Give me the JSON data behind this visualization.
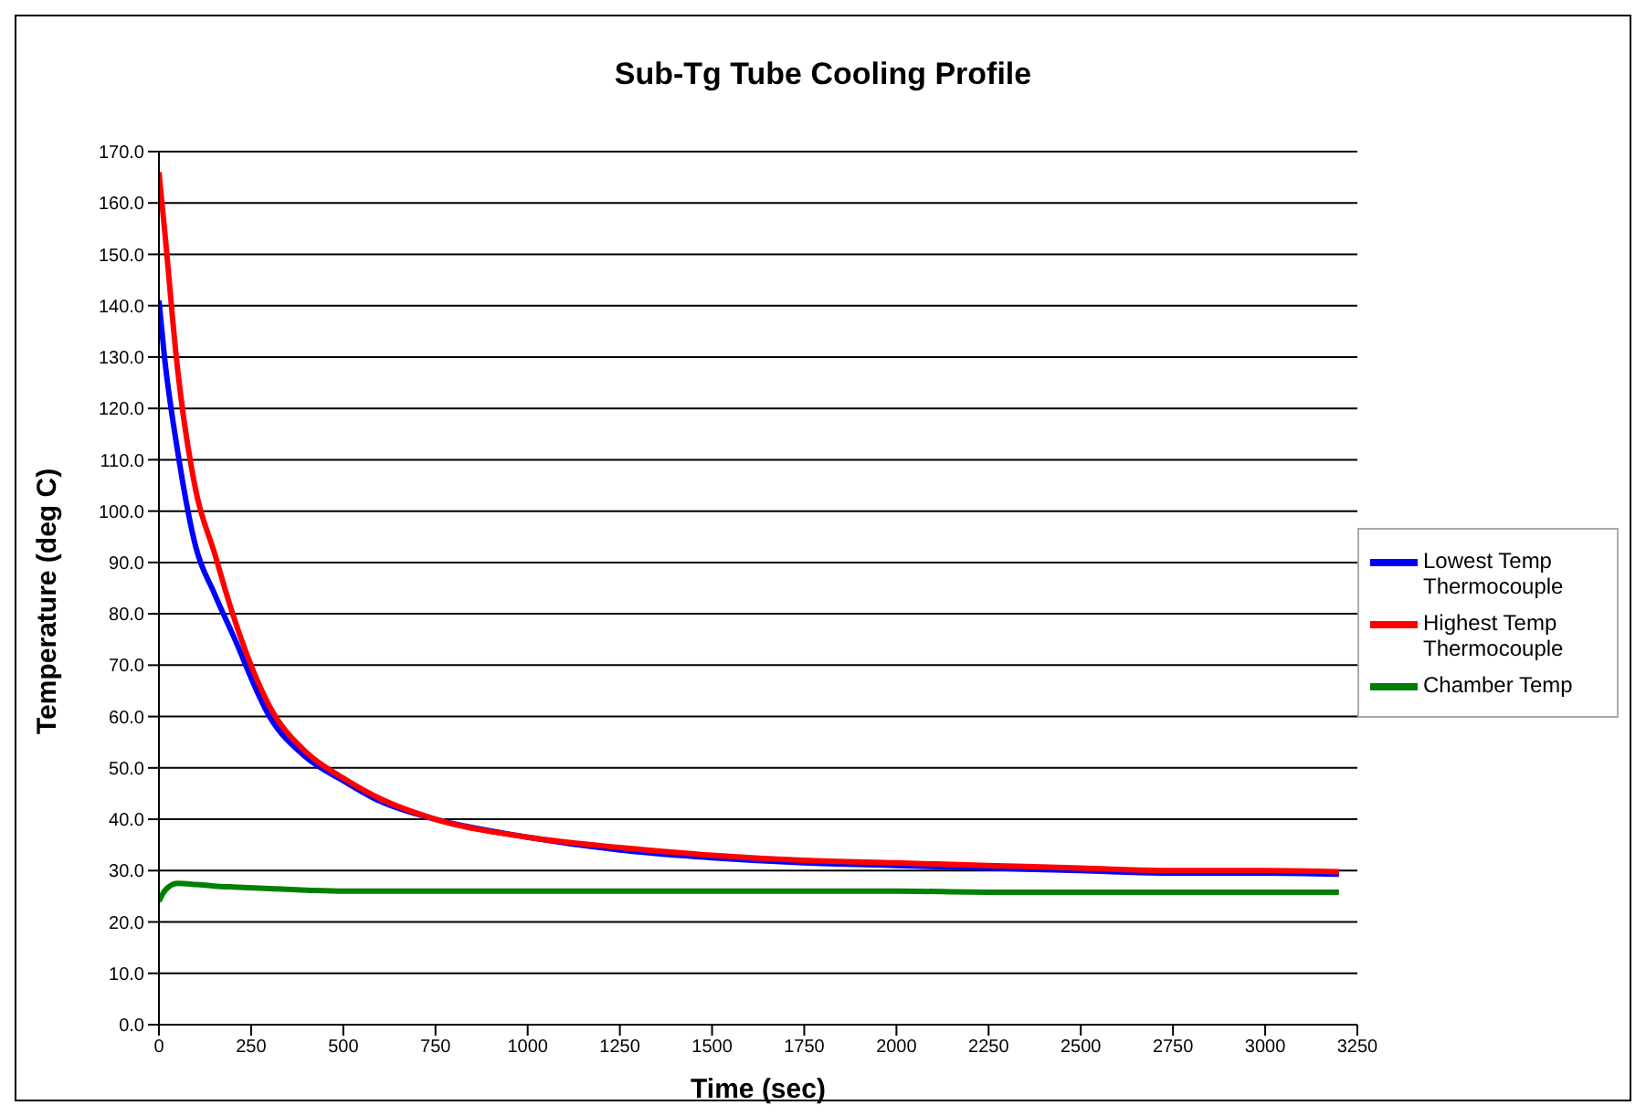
{
  "chart_data": {
    "type": "line",
    "title": "Sub-Tg Tube Cooling Profile",
    "xlabel": "Time (sec)",
    "ylabel": "Temperature (deg C)",
    "x": [
      0,
      15,
      50,
      100,
      150,
      200,
      300,
      400,
      500,
      600,
      750,
      1000,
      1250,
      1500,
      1750,
      2000,
      2250,
      2500,
      2750,
      3000,
      3200
    ],
    "series": [
      {
        "name": "Lowest Temp Thermocouple",
        "color": "#0000ff",
        "values": [
          141,
          130,
          112,
          93,
          84,
          76,
          60,
          52,
          47.5,
          43.5,
          40,
          36.5,
          34,
          32.5,
          31.5,
          31,
          30.5,
          30,
          29.5,
          29.5,
          29.3
        ]
      },
      {
        "name": "Highest Temp Thermocouple",
        "color": "#ff0000",
        "values": [
          166,
          155,
          128,
          104,
          92,
          80,
          62,
          53,
          48,
          44,
          40,
          36.5,
          34.5,
          33,
          32,
          31.5,
          31,
          30.5,
          30,
          30,
          29.8
        ]
      },
      {
        "name": "Chamber Temp",
        "color": "#008000",
        "values": [
          24,
          26,
          27.5,
          27.3,
          27,
          26.8,
          26.5,
          26.2,
          26,
          26,
          26,
          26,
          26,
          26,
          26,
          26,
          25.8,
          25.8,
          25.8,
          25.8,
          25.8
        ]
      }
    ],
    "xlim": [
      0,
      3250
    ],
    "xticks": [
      0,
      250,
      500,
      750,
      1000,
      1250,
      1500,
      1750,
      2000,
      2250,
      2500,
      2750,
      3000,
      3250
    ],
    "ylim": [
      0,
      170
    ],
    "yticks": [
      {
        "value": 0,
        "label": "0.0"
      },
      {
        "value": 10,
        "label": "10.0"
      },
      {
        "value": 20,
        "label": "20.0"
      },
      {
        "value": 30,
        "label": "30.0"
      },
      {
        "value": 40,
        "label": "40.0"
      },
      {
        "value": 50,
        "label": "50.0"
      },
      {
        "value": 60,
        "label": "60.0"
      },
      {
        "value": 70,
        "label": "70.0"
      },
      {
        "value": 80,
        "label": "80.0"
      },
      {
        "value": 90,
        "label": "90.0"
      },
      {
        "value": 100,
        "label": "100.0"
      },
      {
        "value": 110,
        "label": "110.0"
      },
      {
        "value": 120,
        "label": "120.0"
      },
      {
        "value": 130,
        "label": "130.0"
      },
      {
        "value": 140,
        "label": "140.0"
      },
      {
        "value": 150,
        "label": "150.0"
      },
      {
        "value": 160,
        "label": "160.0"
      },
      {
        "value": 170,
        "label": "170.0"
      }
    ],
    "grid": "y",
    "legend": "right",
    "marker": "none",
    "line_style": "solid"
  }
}
